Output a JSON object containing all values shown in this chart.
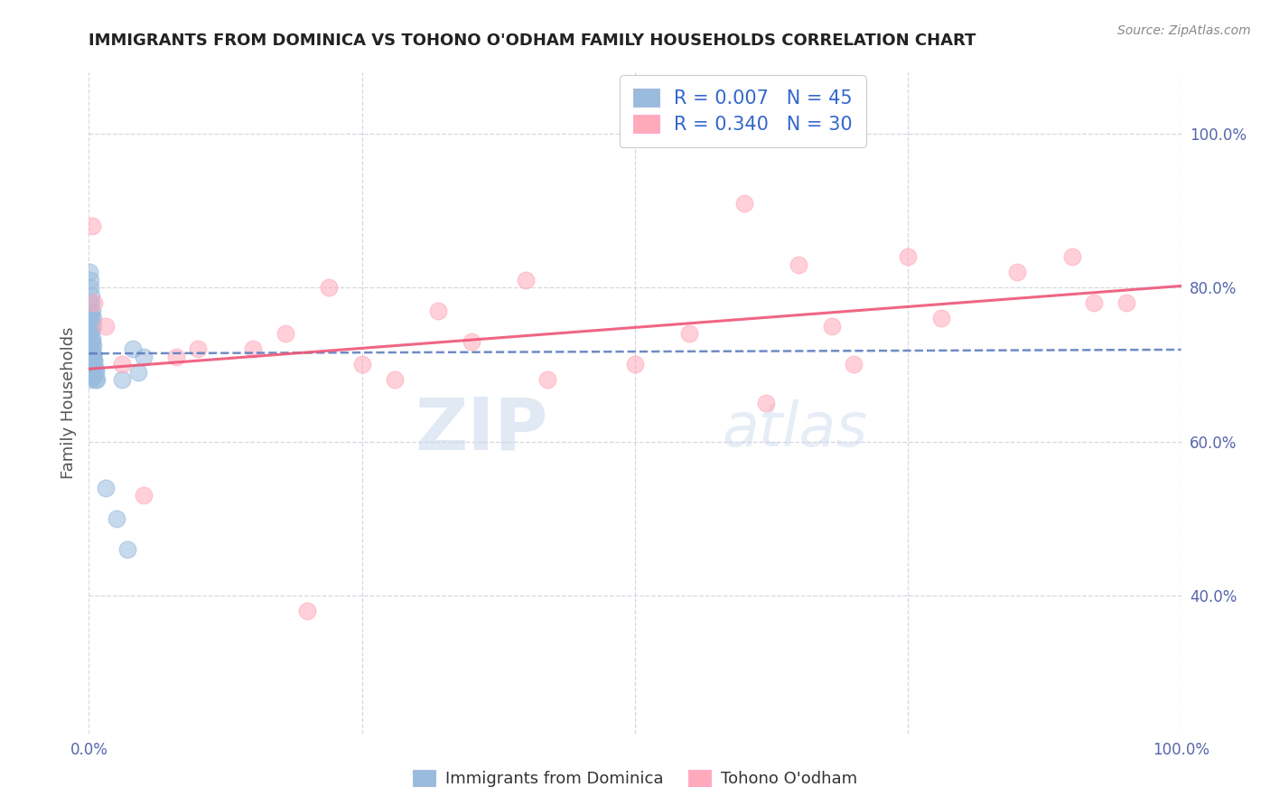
{
  "title": "IMMIGRANTS FROM DOMINICA VS TOHONO O'ODHAM FAMILY HOUSEHOLDS CORRELATION CHART",
  "source_text": "Source: ZipAtlas.com",
  "ylabel": "Family Households",
  "watermark_zip": "ZIP",
  "watermark_atlas": "atlas",
  "legend_label_1": "Immigrants from Dominica",
  "legend_label_2": "Tohono O'odham",
  "r1": 0.007,
  "n1": 45,
  "r2": 0.34,
  "n2": 30,
  "color_blue": "#99BBDD",
  "color_pink": "#FFAABB",
  "color_blue_line": "#5577BB",
  "color_pink_line": "#EE5577",
  "blue_x": [
    0.1,
    0.15,
    0.2,
    0.25,
    0.3,
    0.35,
    0.4,
    0.5,
    0.6,
    0.7,
    0.1,
    0.15,
    0.2,
    0.25,
    0.3,
    0.35,
    0.4,
    0.45,
    0.5,
    0.6,
    0.05,
    0.1,
    0.15,
    0.2,
    0.25,
    0.3,
    0.35,
    0.4,
    0.5,
    0.6,
    0.05,
    0.1,
    0.15,
    0.2,
    0.25,
    0.3,
    0.35,
    0.4,
    1.5,
    2.5,
    3.0,
    3.5,
    4.0,
    4.5,
    5.0
  ],
  "blue_y": [
    70.0,
    72.0,
    68.0,
    71.0,
    73.0,
    69.0,
    71.0,
    70.5,
    69.0,
    68.0,
    75.0,
    74.0,
    76.0,
    73.0,
    72.0,
    71.0,
    70.0,
    69.0,
    68.5,
    68.0,
    78.0,
    77.0,
    76.5,
    75.5,
    74.5,
    73.5,
    72.5,
    71.5,
    70.5,
    69.5,
    82.0,
    81.0,
    80.0,
    79.0,
    78.0,
    77.0,
    76.0,
    75.0,
    54.0,
    50.0,
    68.0,
    46.0,
    72.0,
    69.0,
    71.0
  ],
  "pink_x": [
    0.3,
    0.5,
    1.5,
    3.0,
    5.0,
    8.0,
    10.0,
    15.0,
    18.0,
    20.0,
    22.0,
    25.0,
    28.0,
    32.0,
    35.0,
    40.0,
    42.0,
    50.0,
    55.0,
    60.0,
    62.0,
    65.0,
    68.0,
    70.0,
    75.0,
    78.0,
    85.0,
    90.0,
    92.0,
    95.0
  ],
  "pink_y": [
    88.0,
    78.0,
    75.0,
    70.0,
    53.0,
    71.0,
    72.0,
    72.0,
    74.0,
    38.0,
    80.0,
    70.0,
    68.0,
    77.0,
    73.0,
    81.0,
    68.0,
    70.0,
    74.0,
    91.0,
    65.0,
    83.0,
    75.0,
    70.0,
    84.0,
    76.0,
    82.0,
    84.0,
    78.0,
    78.0
  ],
  "xmin": 0.0,
  "xmax": 100.0,
  "ymin": 22.0,
  "ymax": 108.0,
  "yticks_right": [
    40.0,
    60.0,
    80.0,
    100.0
  ],
  "ytick_labels_right": [
    "40.0%",
    "60.0%",
    "80.0%",
    "100.0%"
  ],
  "grid_color": "#CCCCDD",
  "background_color": "#FFFFFF",
  "title_color": "#222222",
  "title_fontsize": 13,
  "axis_label_color": "#555555",
  "tick_color": "#5566AA",
  "legend_color": "#3366CC"
}
